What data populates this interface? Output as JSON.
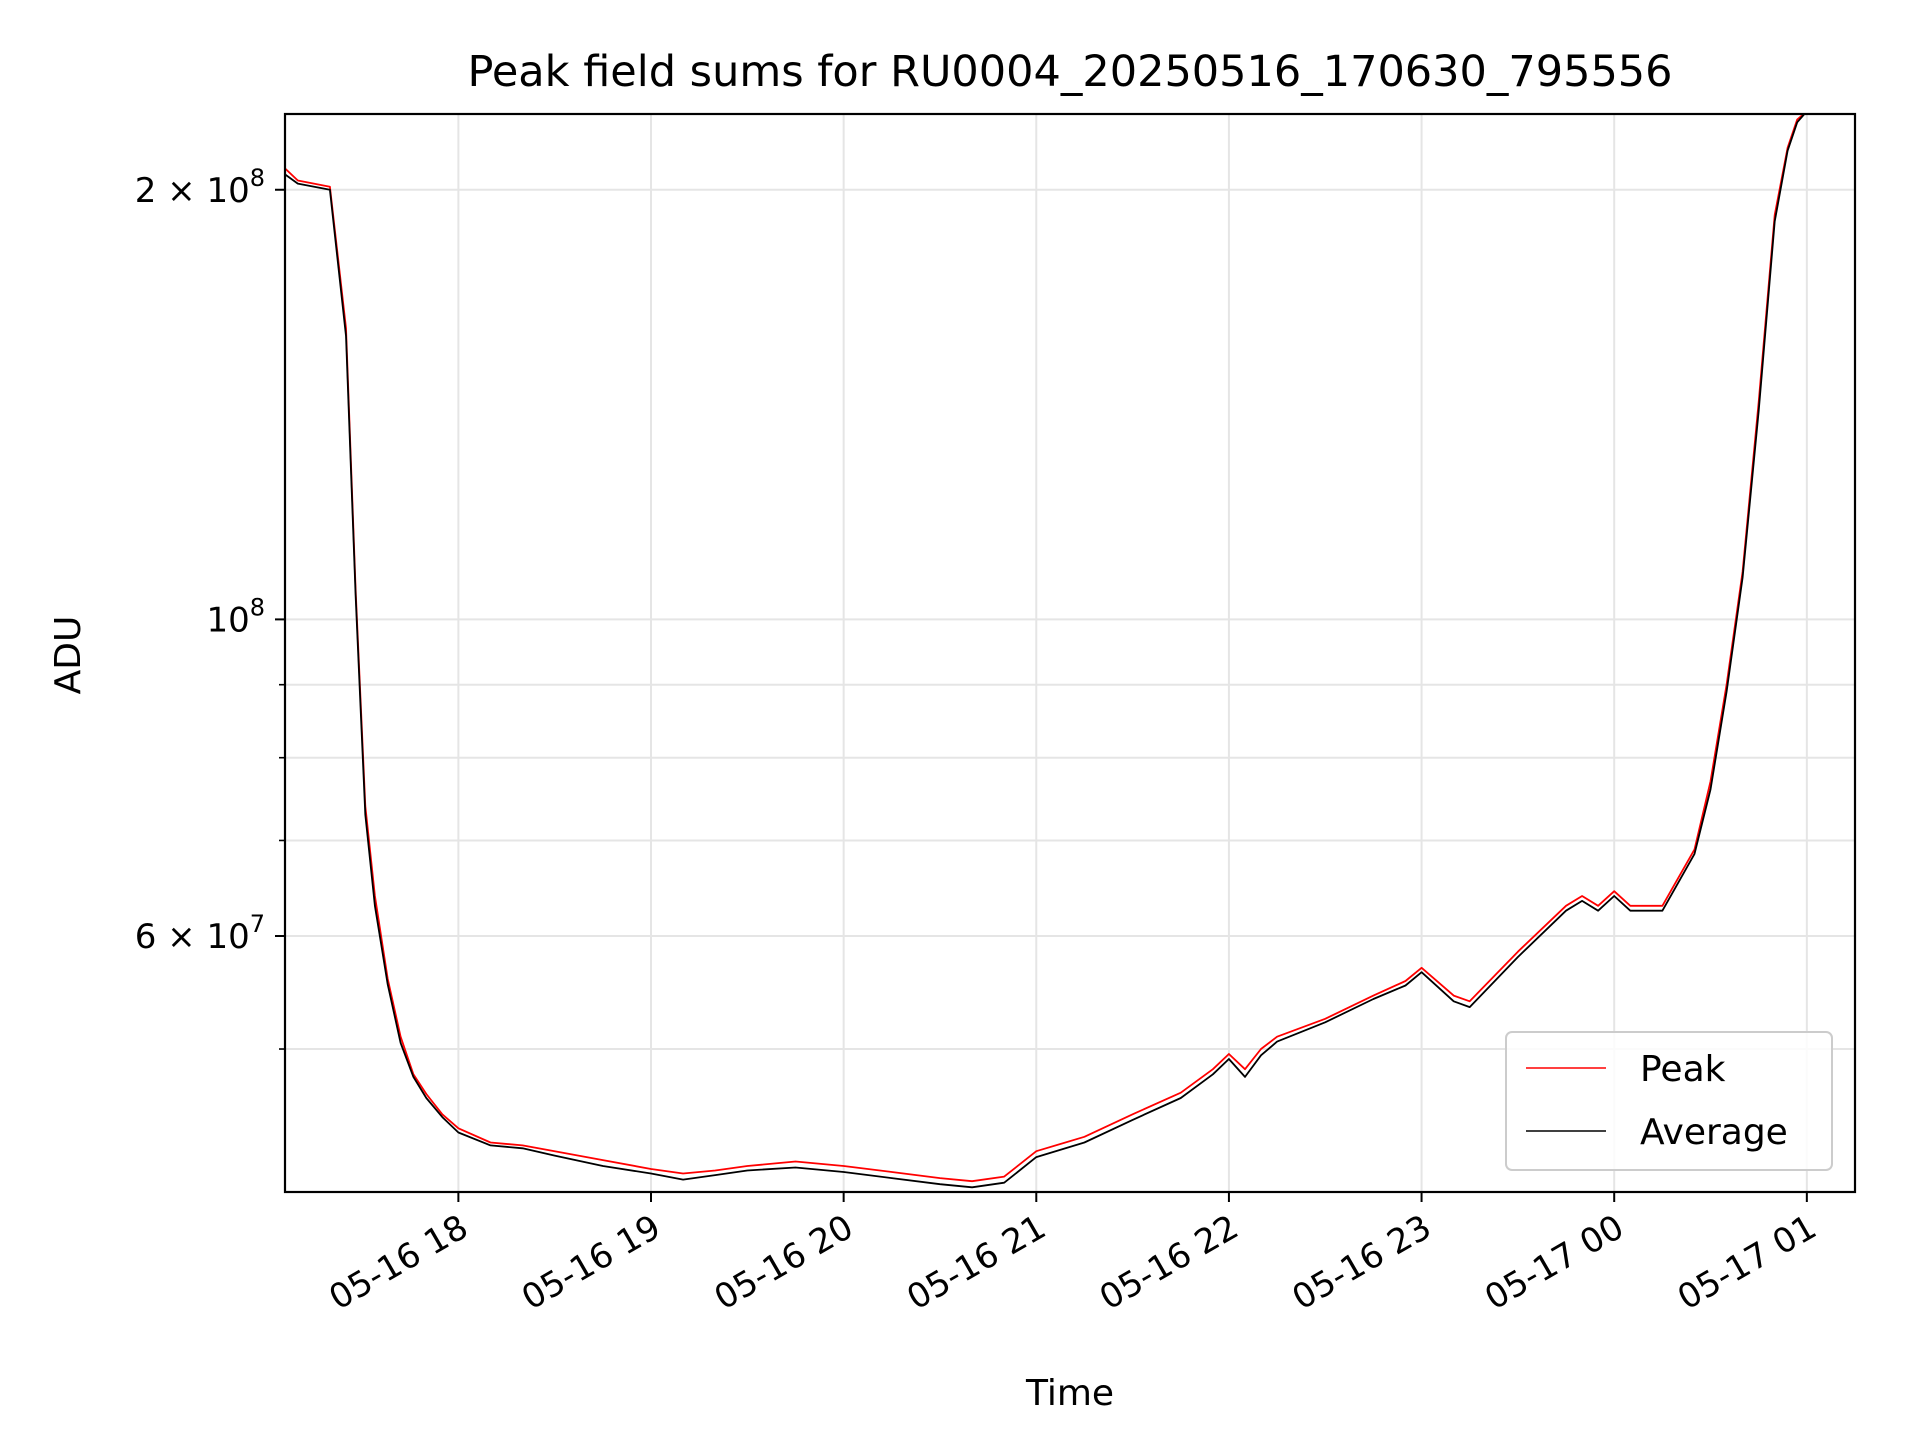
{
  "chart_data": {
    "type": "line",
    "title": "Peak field sums for RU0004_20250516_170630_795556",
    "xlabel": "Time",
    "ylabel": "ADU",
    "yscale": "log",
    "grid": true,
    "legend_position": "lower-right",
    "xlim": [
      "2025-05-16 17:06",
      "2025-05-17 01:15"
    ],
    "ylim": [
      39700000,
      226000000
    ],
    "x_ticks": [
      {
        "value": "2025-05-16 18:00",
        "label": "05-16 18"
      },
      {
        "value": "2025-05-16 19:00",
        "label": "05-16 19"
      },
      {
        "value": "2025-05-16 20:00",
        "label": "05-16 20"
      },
      {
        "value": "2025-05-16 21:00",
        "label": "05-16 21"
      },
      {
        "value": "2025-05-16 22:00",
        "label": "05-16 22"
      },
      {
        "value": "2025-05-16 23:00",
        "label": "05-16 23"
      },
      {
        "value": "2025-05-17 00:00",
        "label": "05-17 00"
      },
      {
        "value": "2025-05-17 01:00",
        "label": "05-17 01"
      }
    ],
    "y_major_ticks": [
      {
        "value": 60000000,
        "label": "6 × 10",
        "exp": "7"
      },
      {
        "value": 100000000,
        "label": "10",
        "exp": "8"
      },
      {
        "value": 200000000,
        "label": "2 × 10",
        "exp": "8"
      }
    ],
    "y_minor_ticks": [
      50000000,
      70000000,
      80000000,
      90000000
    ],
    "colors": {
      "peak": "#ff0000",
      "average": "#000000",
      "grid": "#e5e5e5"
    },
    "series": [
      {
        "name": "Peak",
        "color": "#ff0000",
        "x": [
          "2025-05-16 17:06",
          "2025-05-16 17:10",
          "2025-05-16 17:20",
          "2025-05-16 17:25",
          "2025-05-16 17:28",
          "2025-05-16 17:31",
          "2025-05-16 17:34",
          "2025-05-16 17:38",
          "2025-05-16 17:42",
          "2025-05-16 17:46",
          "2025-05-16 17:50",
          "2025-05-16 17:55",
          "2025-05-16 18:00",
          "2025-05-16 18:10",
          "2025-05-16 18:20",
          "2025-05-16 18:30",
          "2025-05-16 18:45",
          "2025-05-16 19:00",
          "2025-05-16 19:10",
          "2025-05-16 19:20",
          "2025-05-16 19:30",
          "2025-05-16 19:45",
          "2025-05-16 20:00",
          "2025-05-16 20:15",
          "2025-05-16 20:30",
          "2025-05-16 20:40",
          "2025-05-16 20:50",
          "2025-05-16 21:00",
          "2025-05-16 21:15",
          "2025-05-16 21:30",
          "2025-05-16 21:45",
          "2025-05-16 21:55",
          "2025-05-16 22:00",
          "2025-05-16 22:05",
          "2025-05-16 22:10",
          "2025-05-16 22:15",
          "2025-05-16 22:30",
          "2025-05-16 22:45",
          "2025-05-16 22:55",
          "2025-05-16 23:00",
          "2025-05-16 23:10",
          "2025-05-16 23:15",
          "2025-05-16 23:30",
          "2025-05-16 23:45",
          "2025-05-16 23:50",
          "2025-05-16 23:55",
          "2025-05-17 00:00",
          "2025-05-17 00:05",
          "2025-05-17 00:15",
          "2025-05-17 00:25",
          "2025-05-17 00:30",
          "2025-05-17 00:35",
          "2025-05-17 00:40",
          "2025-05-17 00:45",
          "2025-05-17 00:50",
          "2025-05-17 00:54",
          "2025-05-17 00:57",
          "2025-05-17 01:00"
        ],
        "values": [
          207000000,
          203000000,
          201000000,
          160000000,
          105000000,
          74000000,
          64000000,
          56000000,
          51000000,
          48000000,
          46500000,
          45000000,
          44000000,
          43000000,
          42800000,
          42400000,
          41800000,
          41200000,
          40900000,
          41100000,
          41400000,
          41700000,
          41400000,
          41000000,
          40600000,
          40400000,
          40700000,
          42400000,
          43400000,
          45000000,
          46600000,
          48400000,
          49600000,
          48400000,
          50000000,
          51000000,
          52500000,
          54500000,
          55800000,
          57000000,
          54500000,
          54000000,
          58500000,
          63000000,
          64000000,
          63000000,
          64500000,
          63000000,
          63000000,
          69000000,
          77000000,
          90000000,
          108000000,
          142000000,
          192000000,
          214000000,
          224000000,
          227000000
        ]
      },
      {
        "name": "Average",
        "color": "#000000",
        "x": [
          "2025-05-16 17:06",
          "2025-05-16 17:10",
          "2025-05-16 17:20",
          "2025-05-16 17:25",
          "2025-05-16 17:28",
          "2025-05-16 17:31",
          "2025-05-16 17:34",
          "2025-05-16 17:38",
          "2025-05-16 17:42",
          "2025-05-16 17:46",
          "2025-05-16 17:50",
          "2025-05-16 17:55",
          "2025-05-16 18:00",
          "2025-05-16 18:10",
          "2025-05-16 18:20",
          "2025-05-16 18:30",
          "2025-05-16 18:45",
          "2025-05-16 19:00",
          "2025-05-16 19:10",
          "2025-05-16 19:20",
          "2025-05-16 19:30",
          "2025-05-16 19:45",
          "2025-05-16 20:00",
          "2025-05-16 20:15",
          "2025-05-16 20:30",
          "2025-05-16 20:40",
          "2025-05-16 20:50",
          "2025-05-16 21:00",
          "2025-05-16 21:15",
          "2025-05-16 21:30",
          "2025-05-16 21:45",
          "2025-05-16 21:55",
          "2025-05-16 22:00",
          "2025-05-16 22:05",
          "2025-05-16 22:10",
          "2025-05-16 22:15",
          "2025-05-16 22:30",
          "2025-05-16 22:45",
          "2025-05-16 22:55",
          "2025-05-16 23:00",
          "2025-05-16 23:10",
          "2025-05-16 23:15",
          "2025-05-16 23:30",
          "2025-05-16 23:45",
          "2025-05-16 23:50",
          "2025-05-16 23:55",
          "2025-05-17 00:00",
          "2025-05-17 00:05",
          "2025-05-17 00:15",
          "2025-05-17 00:25",
          "2025-05-17 00:30",
          "2025-05-17 00:35",
          "2025-05-17 00:40",
          "2025-05-17 00:45",
          "2025-05-17 00:50",
          "2025-05-17 00:54",
          "2025-05-17 00:57",
          "2025-05-17 01:00"
        ],
        "values": [
          205000000,
          202000000,
          200000000,
          158000000,
          104000000,
          73000000,
          63000000,
          55500000,
          50500000,
          47800000,
          46200000,
          44800000,
          43700000,
          42800000,
          42600000,
          42100000,
          41400000,
          40900000,
          40500000,
          40800000,
          41100000,
          41300000,
          41000000,
          40600000,
          40200000,
          40000000,
          40300000,
          42000000,
          43000000,
          44600000,
          46200000,
          48000000,
          49200000,
          47800000,
          49500000,
          50600000,
          52200000,
          54200000,
          55400000,
          56600000,
          54000000,
          53500000,
          58000000,
          62500000,
          63500000,
          62500000,
          64000000,
          62500000,
          62500000,
          68500000,
          76000000,
          89000000,
          107000000,
          140000000,
          190000000,
          213000000,
          223000000,
          227000000
        ]
      }
    ]
  }
}
